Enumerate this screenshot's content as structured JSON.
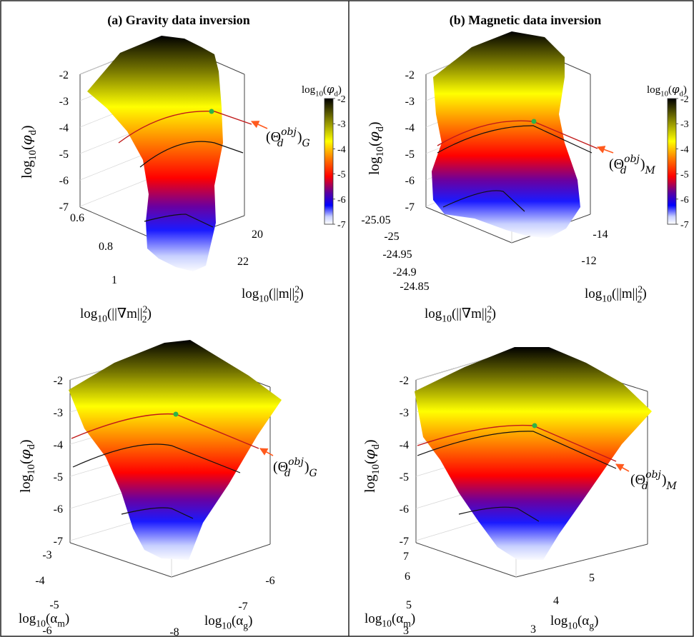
{
  "figure": {
    "panel_titles": [
      "(a) Gravity data inversion",
      "(b) Magnetic data inversion"
    ]
  },
  "colors": {
    "colormap": [
      "#ffffff",
      "#0000ff",
      "#5000a0",
      "#ff0000",
      "#ffa000",
      "#ffff00",
      "#808000",
      "#000000"
    ],
    "marker": "#2db34a",
    "arrow": "#ff5a1e",
    "objective_contour": "#c01a1a",
    "contour": "#111111",
    "frame": "#444444",
    "grid": "#d8d8d8"
  },
  "chart_data": [
    {
      "id": "gravity-top",
      "type": "surface3d",
      "zlabel": {
        "base": "log",
        "sub": "10",
        "open": "(",
        "var": "φ",
        "varsub": "d",
        "close": ")"
      },
      "xlabel": {
        "text": "log10(||m||²₂)",
        "base": "log",
        "sub": "10",
        "arg": "(||m||",
        "sup": "2",
        "sub2": "2",
        "close": ")"
      },
      "ylabel": {
        "text": "log10(||∇m||²₂)",
        "base": "log",
        "sub": "10",
        "arg": "(||∇m||",
        "sup": "2",
        "sub2": "2",
        "close": ")"
      },
      "zticks": [
        "-2",
        "-3",
        "-4",
        "-5",
        "-6",
        "-7"
      ],
      "zlim": [
        -7,
        -2
      ],
      "yticks": [
        "0.6",
        "0.8",
        "1"
      ],
      "xticks": [
        "20",
        "22"
      ],
      "colorbar": {
        "label": "log10(φd)",
        "label_parts": {
          "base": "log",
          "sub": "10",
          "var": "φ",
          "varsub": "d"
        },
        "ticks": [
          "-2",
          "-3",
          "-4",
          "-5",
          "-6",
          "-7"
        ],
        "range": [
          -7,
          -2
        ]
      },
      "annotation": {
        "text": "(Θd^obj)G",
        "sym": "Θ",
        "sub": "d",
        "sup": "obj",
        "outer": "G"
      },
      "optimum_marker_z": -3.3
    },
    {
      "id": "magnetic-top",
      "type": "surface3d",
      "zlabel": {
        "base": "log",
        "sub": "10",
        "open": "(",
        "var": "φ",
        "varsub": "d",
        "close": ")"
      },
      "xlabel": {
        "text": "log10(||m||²₂)",
        "base": "log",
        "sub": "10",
        "arg": "(||m||",
        "sup": "2",
        "sub2": "2",
        "close": ")"
      },
      "ylabel": {
        "text": "log10(||∇m||²₂)",
        "base": "log",
        "sub": "10",
        "arg": "(||∇m||",
        "sup": "2",
        "sub2": "2",
        "close": ")"
      },
      "zticks": [
        "-2",
        "-3",
        "-4",
        "-5",
        "-6",
        "-7"
      ],
      "zlim": [
        -7,
        -2
      ],
      "yticks": [
        "-25.05",
        "-25",
        "-24.95",
        "-24.9",
        "-24.85"
      ],
      "xticks": [
        "-14",
        "-12"
      ],
      "colorbar": {
        "label": "log10(φd)",
        "label_parts": {
          "base": "log",
          "sub": "10",
          "var": "φ",
          "varsub": "d"
        },
        "ticks": [
          "-2",
          "-3",
          "-4",
          "-5",
          "-6",
          "-7"
        ],
        "range": [
          -7,
          -2
        ]
      },
      "annotation": {
        "text": "(Θd^obj)M",
        "sym": "Θ",
        "sub": "d",
        "sup": "obj",
        "outer": "M"
      },
      "optimum_marker_z": -3.7
    },
    {
      "id": "gravity-bottom",
      "type": "surface3d",
      "zlabel": {
        "base": "log",
        "sub": "10",
        "open": "(",
        "var": "φ",
        "varsub": "d",
        "close": ")"
      },
      "xlabel": {
        "text": "log10(αm)",
        "base": "log",
        "sub": "10",
        "arg": "(α",
        "sub2": "m",
        "close": ")"
      },
      "ylabel": {
        "text": "log10(αg)",
        "base": "log",
        "sub": "10",
        "arg": "(α",
        "sub2": "g",
        "close": ")"
      },
      "zticks": [
        "-2",
        "-3",
        "-4",
        "-5",
        "-6",
        "-7"
      ],
      "zlim": [
        -7,
        -2
      ],
      "yticks": [
        "-3",
        "-4",
        "-5",
        "-6"
      ],
      "xticks": [
        "-8",
        "-7",
        "-6"
      ],
      "annotation": {
        "text": "(Θd^obj)G",
        "sym": "Θ",
        "sub": "d",
        "sup": "obj",
        "outer": "G"
      },
      "optimum_marker_z": -3.0
    },
    {
      "id": "magnetic-bottom",
      "type": "surface3d",
      "zlabel": {
        "base": "log",
        "sub": "10",
        "open": "(",
        "var": "φ",
        "varsub": "d",
        "close": ")"
      },
      "xlabel": {
        "text": "log10(αm)",
        "base": "log",
        "sub": "10",
        "arg": "(α",
        "sub2": "m",
        "close": ")"
      },
      "ylabel": {
        "text": "log10(αg)",
        "base": "log",
        "sub": "10",
        "arg": "(α",
        "sub2": "g",
        "close": ")"
      },
      "zticks": [
        "-2",
        "-3",
        "-4",
        "-5",
        "-6",
        "-7"
      ],
      "zlim": [
        -7,
        -2
      ],
      "yticks": [
        "7",
        "6",
        "5",
        "3"
      ],
      "xticks": [
        "3",
        "4",
        "5"
      ],
      "annotation": {
        "text": "(Θd^obj)M",
        "sym": "Θ",
        "sub": "d",
        "sup": "obj",
        "outer": "M"
      },
      "optimum_marker_z": -3.4
    }
  ]
}
